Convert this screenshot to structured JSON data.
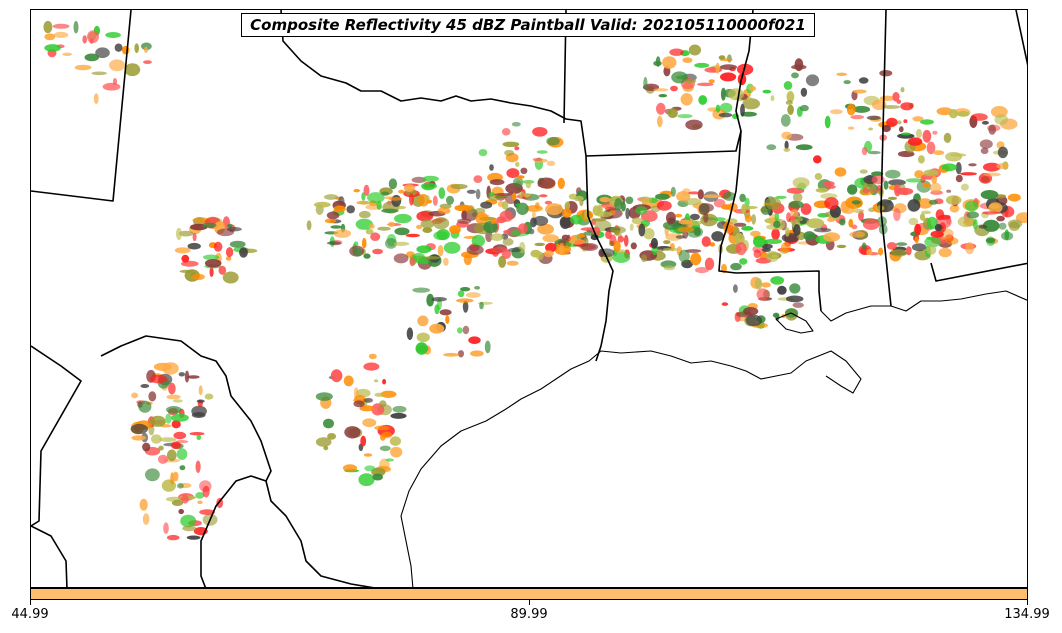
{
  "title": "Composite Reflectivity 45 dBZ Paintball Valid: 202105110000f021",
  "colors": {
    "colorbar": "#fdbf6f",
    "member_palette": [
      "#ff2020",
      "#ff5555",
      "#ff8c00",
      "#fdaa44",
      "#2ecc2e",
      "#3a8a3a",
      "#9a9a30",
      "#8b3a3a",
      "#404040",
      "#bcbc50"
    ]
  },
  "colorbar": {
    "ticks": [
      "44.99",
      "89.99",
      "134.99"
    ]
  }
}
